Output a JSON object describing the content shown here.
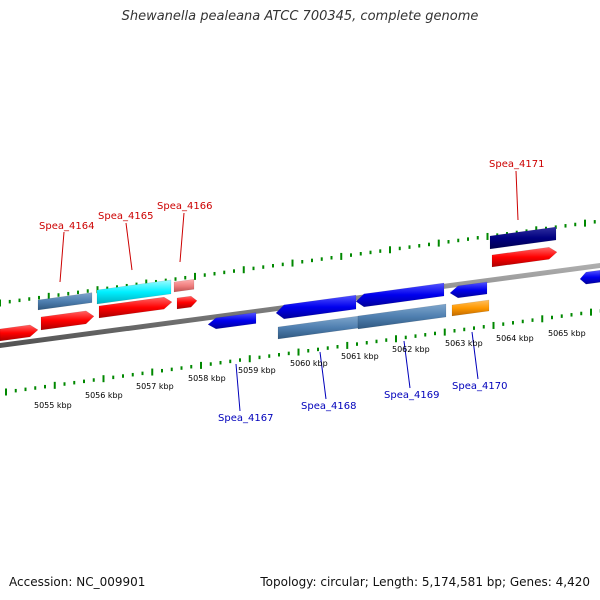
{
  "title": "Shewanella pealeana ATCC 700345, complete genome",
  "footer": {
    "accession": "Accession: NC_009901",
    "summary": "Topology: circular; Length: 5,174,581 bp; Genes: 4,420"
  },
  "colors": {
    "forward_label": "#cc0000",
    "reverse_label": "#0000bb",
    "tick": "#008800",
    "backbone": "#808080",
    "tick_label": "#000000"
  },
  "scale_labels": [
    "5055 kbp",
    "5056 kbp",
    "5057 kbp",
    "5058 kbp",
    "5059 kbp",
    "5060 kbp",
    "5061 kbp",
    "5062 kbp",
    "5063 kbp",
    "5064 kbp",
    "5065 kbp"
  ],
  "gene_labels": [
    {
      "id": "Spea_4164",
      "strand": "forward"
    },
    {
      "id": "Spea_4165",
      "strand": "forward"
    },
    {
      "id": "Spea_4166",
      "strand": "forward"
    },
    {
      "id": "Spea_4171",
      "strand": "forward"
    },
    {
      "id": "Spea_4167",
      "strand": "reverse"
    },
    {
      "id": "Spea_4168",
      "strand": "reverse"
    },
    {
      "id": "Spea_4169",
      "strand": "reverse"
    },
    {
      "id": "Spea_4170",
      "strand": "reverse"
    }
  ]
}
